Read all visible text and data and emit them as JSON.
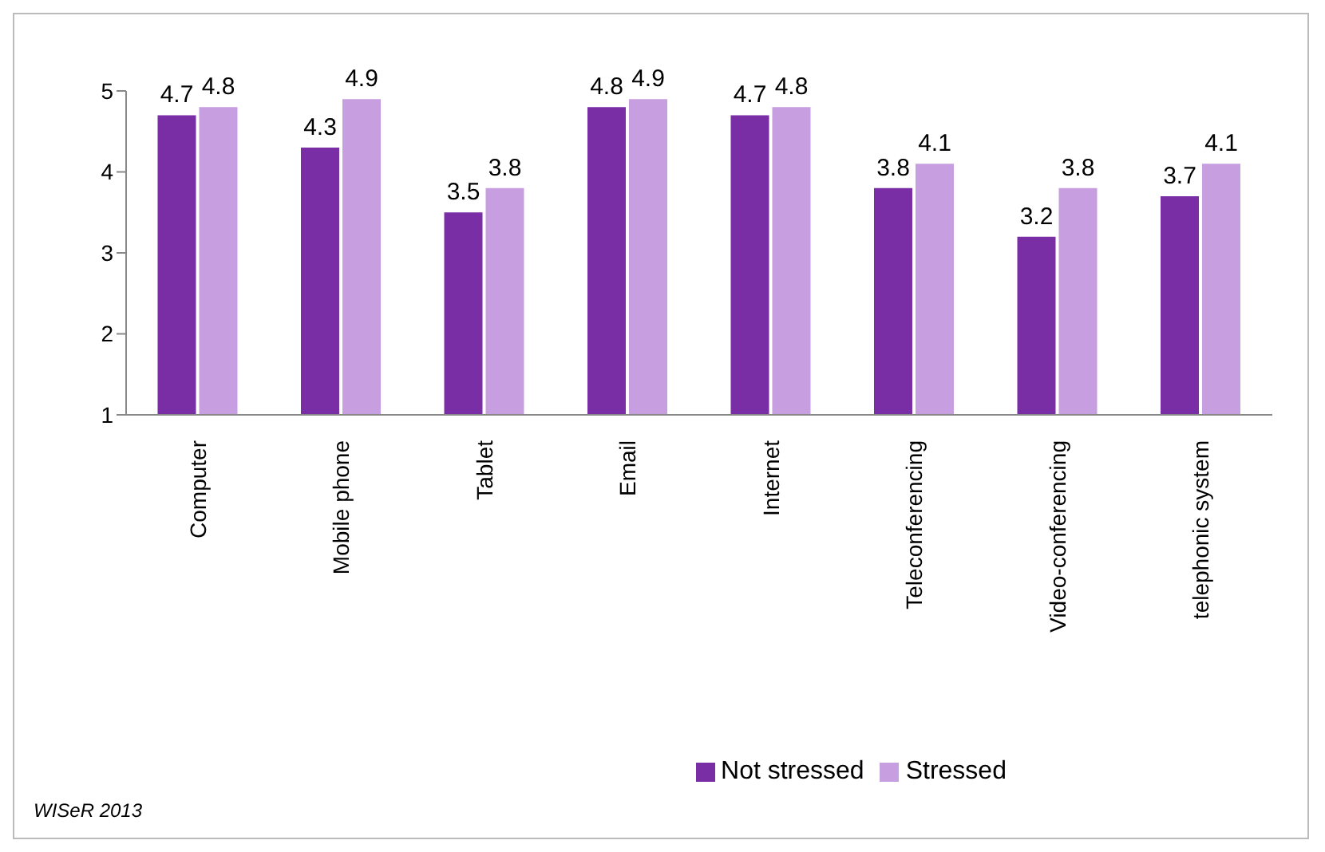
{
  "chart_data": {
    "type": "bar",
    "categories": [
      "Computer",
      "Mobile phone",
      "Tablet",
      "Email",
      "Internet",
      "Teleconferencing",
      "Video-conferencing",
      "telephonic system"
    ],
    "series": [
      {
        "name": "Not stressed",
        "color": "#7a2ea6",
        "values": [
          4.7,
          4.3,
          3.5,
          4.8,
          4.7,
          3.8,
          3.2,
          3.7
        ]
      },
      {
        "name": "Stressed",
        "color": "#c79ee0",
        "values": [
          4.8,
          4.9,
          3.8,
          4.9,
          4.8,
          4.1,
          3.8,
          4.1
        ]
      }
    ],
    "ylim": [
      1,
      5
    ],
    "yticks": [
      1,
      2,
      3,
      4,
      5
    ],
    "legend": "bottom",
    "data_labels": true,
    "annotations": [
      "WISeR 2013"
    ]
  }
}
